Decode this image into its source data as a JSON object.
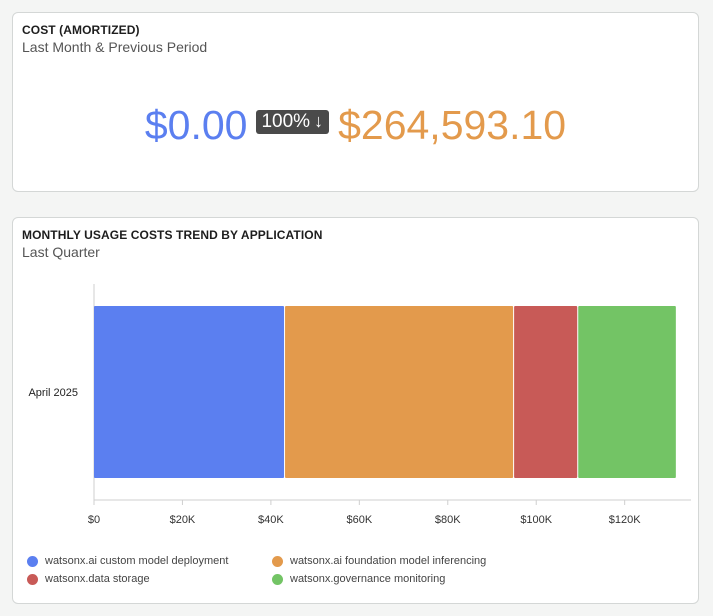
{
  "cost_card": {
    "title": "COST (AMORTIZED)",
    "subtitle": "Last Month & Previous Period",
    "current_value": "$0.00",
    "change_label": "100%",
    "change_arrow": "↓",
    "previous_value": "$264,593.10"
  },
  "trend_card": {
    "title": "MONTHLY USAGE COSTS TREND BY APPLICATION",
    "subtitle": "Last Quarter"
  },
  "chart_data": {
    "type": "bar",
    "orientation": "horizontal",
    "stacked": true,
    "categories": [
      "April 2025"
    ],
    "series": [
      {
        "name": "watsonx.ai custom model deployment",
        "values": [
          43200
        ],
        "color": "#5b7ff0"
      },
      {
        "name": "watsonx.ai foundation model inferencing",
        "values": [
          51800
        ],
        "color": "#e39a4c"
      },
      {
        "name": "watsonx.data storage",
        "values": [
          14500
        ],
        "color": "#c85a57"
      },
      {
        "name": "watsonx.governance monitoring",
        "values": [
          22300
        ],
        "color": "#73c465"
      }
    ],
    "xlim": [
      0,
      135000
    ],
    "xticks": [
      0,
      20000,
      40000,
      60000,
      80000,
      100000,
      120000
    ],
    "xtick_labels": [
      "$0",
      "$20K",
      "$40K",
      "$60K",
      "$80K",
      "$100K",
      "$120K"
    ],
    "xlabel": "",
    "ylabel": "",
    "grid": false,
    "legend_position": "bottom"
  }
}
